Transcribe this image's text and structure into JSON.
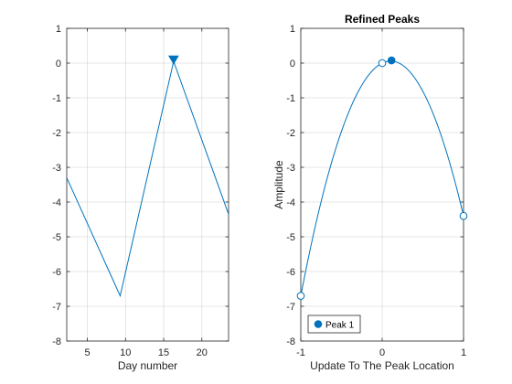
{
  "chart_data": [
    {
      "type": "line",
      "title": "",
      "xlabel": "Day number",
      "ylabel": "",
      "xlim": [
        2.3,
        23.5
      ],
      "ylim": [
        -8,
        1
      ],
      "xticks": [
        5,
        10,
        15,
        20
      ],
      "yticks": [
        -8,
        -7,
        -6,
        -5,
        -4,
        -3,
        -2,
        -1,
        0,
        1
      ],
      "grid": true,
      "series": [
        {
          "name": "",
          "color": "#0072BD",
          "x": [
            2.3,
            9.3,
            16.3,
            23.5
          ],
          "y": [
            -3.3,
            -6.7,
            0.05,
            -4.35
          ]
        }
      ],
      "markers": [
        {
          "shape": "triangle-down",
          "x": 16.3,
          "y": 0.1,
          "color": "#0072BD",
          "filled": true
        }
      ]
    },
    {
      "type": "line",
      "title": "Refined Peaks",
      "xlabel": "Update To The Peak Location",
      "ylabel": "Amplitude",
      "xlim": [
        -1,
        1
      ],
      "ylim": [
        -8,
        1
      ],
      "xticks": [
        -1,
        0,
        1
      ],
      "yticks": [
        -8,
        -7,
        -6,
        -5,
        -4,
        -3,
        -2,
        -1,
        0,
        1
      ],
      "grid": true,
      "legend": {
        "position": "bottom-left",
        "entries": [
          "Peak 1"
        ]
      },
      "series": [
        {
          "name": "Peak 1",
          "color": "#0072BD",
          "curve": "quadratic",
          "x": [
            -1,
            0,
            1
          ],
          "y": [
            -6.7,
            0.0,
            -4.4
          ]
        }
      ],
      "points": [
        {
          "x": -1,
          "y": -6.7,
          "filled": false
        },
        {
          "x": 0,
          "y": 0.0,
          "filled": false
        },
        {
          "x": 1,
          "y": -4.4,
          "filled": false
        },
        {
          "x": 0.115,
          "y": 0.077,
          "filled": true
        }
      ]
    }
  ]
}
